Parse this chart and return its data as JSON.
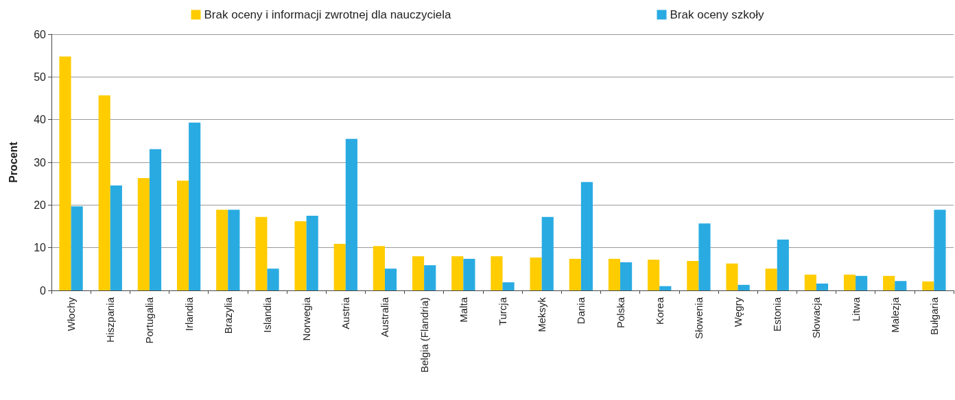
{
  "chart_data": {
    "type": "bar",
    "ylabel": "Procent",
    "categories": [
      "Włochy",
      "Hiszpania",
      "Portugalia",
      "Irlandia",
      "Brazylia",
      "Islandia",
      "Norwegia",
      "Austria",
      "Australia",
      "Belgia (Flandria)",
      "Malta",
      "Turcja",
      "Meksyk",
      "Dania",
      "Polska",
      "Korea",
      "Słowenia",
      "Węgry",
      "Estonia",
      "Słowacja",
      "Litwa",
      "Malezja",
      "Bułgaria"
    ],
    "series": [
      {
        "name": "Brak oceny i informacji zwrotnej dla nauczyciela",
        "color": "#ffcc00",
        "values": [
          54.8,
          45.7,
          26.3,
          25.7,
          18.9,
          17.2,
          16.2,
          10.9,
          10.4,
          8.0,
          8.0,
          8.0,
          7.7,
          7.4,
          7.4,
          7.2,
          6.9,
          6.3,
          5.1,
          3.7,
          3.7,
          3.4,
          2.1
        ]
      },
      {
        "name": "Brak oceny szkoły",
        "color": "#29abe2",
        "values": [
          19.7,
          24.6,
          33.1,
          39.3,
          18.9,
          5.1,
          17.5,
          35.5,
          5.1,
          5.9,
          7.4,
          1.9,
          17.2,
          25.4,
          6.6,
          1.0,
          15.7,
          1.3,
          11.9,
          1.6,
          3.4,
          2.2,
          18.9
        ]
      }
    ],
    "ylim": [
      0,
      60
    ],
    "yticks": [
      0,
      10,
      20,
      30,
      40,
      50,
      60
    ],
    "grid": "y",
    "legend": "top"
  }
}
